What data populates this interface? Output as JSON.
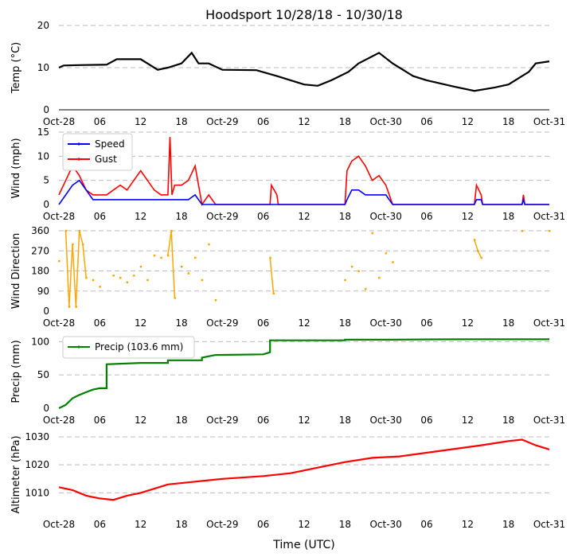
{
  "chart_data": {
    "type": "line",
    "title": "Hoodsport 10/28/18 - 10/30/18",
    "xlabel": "Time (UTC)",
    "x_range_hours": [
      0,
      72
    ],
    "x_tick_labels": [
      "Oct-28",
      "06",
      "12",
      "18",
      "Oct-29",
      "06",
      "12",
      "18",
      "Oct-30",
      "06",
      "12",
      "18",
      "Oct-31"
    ],
    "x_tick_hours": [
      0,
      6,
      12,
      18,
      24,
      30,
      36,
      42,
      48,
      54,
      60,
      66,
      72
    ],
    "panels": [
      {
        "id": "temp",
        "ylabel": "Temp (°C)",
        "ylim": [
          0,
          20
        ],
        "yticks": [
          0,
          10,
          20
        ],
        "series": [
          {
            "name": "Temp",
            "color": "#000000",
            "points": [
              [
                0,
                10
              ],
              [
                0.7,
                10.5
              ],
              [
                3,
                10.6
              ],
              [
                7,
                10.7
              ],
              [
                8.5,
                12
              ],
              [
                12,
                12
              ],
              [
                14.5,
                9.5
              ],
              [
                16,
                10
              ],
              [
                18,
                11
              ],
              [
                19.5,
                13.5
              ],
              [
                20.5,
                11
              ],
              [
                22,
                11
              ],
              [
                24,
                9.5
              ],
              [
                29,
                9.4
              ],
              [
                32,
                8
              ],
              [
                36,
                6
              ],
              [
                38,
                5.7
              ],
              [
                40,
                7
              ],
              [
                42.5,
                9
              ],
              [
                44,
                11
              ],
              [
                47,
                13.5
              ],
              [
                49,
                11
              ],
              [
                52,
                8
              ],
              [
                54,
                7
              ],
              [
                58,
                5.5
              ],
              [
                61,
                4.5
              ],
              [
                64,
                5.3
              ],
              [
                66,
                6
              ],
              [
                69,
                9
              ],
              [
                70,
                11
              ],
              [
                72,
                11.5
              ]
            ]
          }
        ]
      },
      {
        "id": "wind",
        "ylabel": "Wind (mph)",
        "ylim": [
          0,
          15
        ],
        "yticks": [
          0,
          5,
          10,
          15
        ],
        "legend": [
          {
            "label": "Speed",
            "color": "#0000ff"
          },
          {
            "label": "Gust",
            "color": "#ff0000"
          }
        ],
        "series": [
          {
            "name": "Gust",
            "color": "#ff0000",
            "points": [
              [
                0,
                2
              ],
              [
                1,
                5
              ],
              [
                2,
                8
              ],
              [
                3,
                6
              ],
              [
                4,
                3
              ],
              [
                5,
                2
              ],
              [
                6,
                2
              ],
              [
                7,
                2
              ],
              [
                8,
                3
              ],
              [
                9,
                4
              ],
              [
                10,
                3
              ],
              [
                11,
                5
              ],
              [
                12,
                7
              ],
              [
                13,
                5
              ],
              [
                14,
                3
              ],
              [
                15,
                2
              ],
              [
                16,
                2
              ],
              [
                16.3,
                14
              ],
              [
                16.6,
                2
              ],
              [
                17,
                4
              ],
              [
                18,
                4
              ],
              [
                19,
                5
              ],
              [
                20,
                8
              ],
              [
                21,
                0
              ],
              [
                22,
                2
              ],
              [
                23,
                0
              ],
              [
                31,
                0
              ],
              [
                31.2,
                4
              ],
              [
                32,
                2
              ],
              [
                32.2,
                0
              ],
              [
                42,
                0
              ],
              [
                42.3,
                7
              ],
              [
                43,
                9
              ],
              [
                44,
                10
              ],
              [
                45,
                8
              ],
              [
                46,
                5
              ],
              [
                47,
                6
              ],
              [
                48,
                4
              ],
              [
                49,
                0
              ],
              [
                61,
                0
              ],
              [
                61.3,
                4
              ],
              [
                62,
                2
              ],
              [
                62.2,
                0
              ],
              [
                68,
                0
              ],
              [
                68.2,
                2
              ],
              [
                68.4,
                0
              ],
              [
                72,
                0
              ]
            ]
          },
          {
            "name": "Speed",
            "color": "#0000ff",
            "points": [
              [
                0,
                0
              ],
              [
                1,
                2
              ],
              [
                2,
                4
              ],
              [
                3,
                5
              ],
              [
                4,
                3
              ],
              [
                5,
                1
              ],
              [
                6,
                1
              ],
              [
                7,
                1
              ],
              [
                8,
                1
              ],
              [
                9,
                1
              ],
              [
                10,
                1
              ],
              [
                11,
                1
              ],
              [
                12,
                1
              ],
              [
                13,
                1
              ],
              [
                14,
                1
              ],
              [
                16,
                1
              ],
              [
                17,
                1
              ],
              [
                18,
                1
              ],
              [
                19,
                1
              ],
              [
                20,
                2
              ],
              [
                21,
                0
              ],
              [
                42,
                0
              ],
              [
                42.3,
                1
              ],
              [
                43,
                3
              ],
              [
                44,
                3
              ],
              [
                45,
                2
              ],
              [
                46,
                2
              ],
              [
                47,
                2
              ],
              [
                48,
                2
              ],
              [
                49,
                0
              ],
              [
                61,
                0
              ],
              [
                61.3,
                1
              ],
              [
                62,
                1
              ],
              [
                62.2,
                0
              ],
              [
                68,
                0
              ],
              [
                68.2,
                1
              ],
              [
                68.4,
                0
              ],
              [
                72,
                0
              ]
            ]
          }
        ]
      },
      {
        "id": "dir",
        "ylabel": "Wind Direction",
        "ylim": [
          0,
          360
        ],
        "yticks": [
          0,
          90,
          180,
          270,
          360
        ],
        "series": [
          {
            "name": "Direction",
            "color": "#ffa500",
            "points": [
              [
                0,
                225
              ],
              [
                1,
                360
              ],
              [
                1.5,
                20
              ],
              [
                2,
                300
              ],
              [
                2.5,
                20
              ],
              [
                3,
                360
              ],
              [
                3.5,
                300
              ],
              [
                4,
                150
              ],
              [
                5,
                140
              ],
              [
                6,
                110
              ],
              [
                8,
                160
              ],
              [
                9,
                150
              ],
              [
                10,
                130
              ],
              [
                11,
                160
              ],
              [
                12,
                200
              ],
              [
                13,
                140
              ],
              [
                14,
                250
              ],
              [
                15,
                240
              ],
              [
                16,
                250
              ],
              [
                16.5,
                360
              ],
              [
                17,
                60
              ],
              [
                18,
                200
              ],
              [
                19,
                170
              ],
              [
                20,
                240
              ],
              [
                21,
                140
              ],
              [
                22,
                300
              ],
              [
                23,
                50
              ],
              [
                31,
                240
              ],
              [
                31.5,
                80
              ],
              [
                42,
                140
              ],
              [
                43,
                200
              ],
              [
                44,
                180
              ],
              [
                45,
                100
              ],
              [
                46,
                350
              ],
              [
                47,
                150
              ],
              [
                48,
                260
              ],
              [
                49,
                220
              ],
              [
                61,
                320
              ],
              [
                61.5,
                270
              ],
              [
                62,
                240
              ],
              [
                68,
                360
              ],
              [
                72,
                360
              ]
            ]
          }
        ]
      },
      {
        "id": "precip",
        "ylabel": "Precip (mm)",
        "ylim": [
          0,
          110
        ],
        "yticks": [
          0,
          50,
          100
        ],
        "legend": [
          {
            "label": "Precip (103.6 mm)",
            "color": "#008000"
          }
        ],
        "series": [
          {
            "name": "Precip",
            "color": "#008000",
            "points": [
              [
                0,
                0
              ],
              [
                1,
                5
              ],
              [
                2,
                15
              ],
              [
                3,
                20
              ],
              [
                4,
                24
              ],
              [
                5,
                28
              ],
              [
                6,
                30
              ],
              [
                7,
                30
              ],
              [
                7,
                66
              ],
              [
                12,
                68
              ],
              [
                16,
                68
              ],
              [
                16,
                72
              ],
              [
                21,
                72
              ],
              [
                21,
                76
              ],
              [
                23,
                80
              ],
              [
                30,
                81
              ],
              [
                31,
                84
              ],
              [
                31,
                102
              ],
              [
                35,
                102
              ],
              [
                42,
                102
              ],
              [
                42,
                103
              ],
              [
                49,
                103
              ],
              [
                55,
                103.4
              ],
              [
                60,
                103.5
              ],
              [
                72,
                103.6
              ]
            ]
          }
        ]
      },
      {
        "id": "alt",
        "ylabel": "Altimeter (hPa)",
        "ylim": [
          1003,
          1030
        ],
        "yticks": [
          1010,
          1020,
          1030
        ],
        "series": [
          {
            "name": "Altimeter",
            "color": "#ff0000",
            "points": [
              [
                0,
                1012
              ],
              [
                2,
                1011
              ],
              [
                4,
                1009
              ],
              [
                6,
                1008
              ],
              [
                8,
                1007.5
              ],
              [
                10,
                1009
              ],
              [
                12,
                1010
              ],
              [
                16,
                1013
              ],
              [
                20,
                1014
              ],
              [
                24,
                1015
              ],
              [
                30,
                1016
              ],
              [
                34,
                1017
              ],
              [
                38,
                1019
              ],
              [
                42,
                1021
              ],
              [
                46,
                1022.5
              ],
              [
                50,
                1023
              ],
              [
                56,
                1025
              ],
              [
                62,
                1027
              ],
              [
                66,
                1028.5
              ],
              [
                68,
                1029
              ],
              [
                70,
                1027
              ],
              [
                72,
                1025.5
              ]
            ]
          }
        ]
      }
    ]
  }
}
